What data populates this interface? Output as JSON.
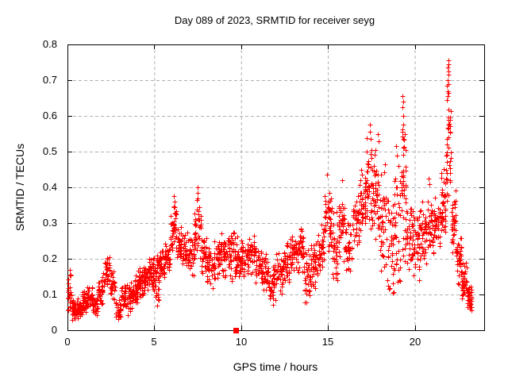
{
  "chart_data": {
    "type": "scatter",
    "title": "Day 089 of 2023, SRMTID for receiver seyg",
    "xlabel": "GPS time / hours",
    "ylabel": "SRMTID / TECUs",
    "xlim": [
      0,
      24
    ],
    "ylim": [
      0,
      0.8
    ],
    "xtick_values": [
      0,
      5,
      10,
      15,
      20
    ],
    "xtick_labels": [
      "0",
      "5",
      "10",
      "15",
      "20"
    ],
    "ytick_values": [
      0,
      0.1,
      0.2,
      0.3,
      0.4,
      0.5,
      0.6,
      0.7,
      0.8
    ],
    "ytick_labels": [
      "0",
      "0.1",
      "0.2",
      "0.3",
      "0.4",
      "0.5",
      "0.6",
      "0.7",
      "0.8"
    ],
    "grid": true,
    "legend": "none",
    "marker": "plus",
    "series_bins": [
      [
        0.0,
        0.2,
        0.03,
        0.19,
        22
      ],
      [
        0.2,
        0.5,
        0.02,
        0.1,
        40
      ],
      [
        0.5,
        0.8,
        0.03,
        0.09,
        38
      ],
      [
        0.8,
        1.1,
        0.04,
        0.11,
        36
      ],
      [
        1.1,
        1.45,
        0.05,
        0.13,
        32
      ],
      [
        1.45,
        1.75,
        0.04,
        0.1,
        30
      ],
      [
        1.75,
        2.05,
        0.06,
        0.16,
        30
      ],
      [
        2.05,
        2.45,
        0.12,
        0.21,
        36
      ],
      [
        2.45,
        2.75,
        0.07,
        0.17,
        30
      ],
      [
        2.75,
        3.1,
        0.02,
        0.09,
        30
      ],
      [
        3.1,
        3.45,
        0.05,
        0.13,
        32
      ],
      [
        3.45,
        3.75,
        0.03,
        0.15,
        32
      ],
      [
        3.75,
        4.05,
        0.06,
        0.16,
        36
      ],
      [
        4.05,
        4.35,
        0.09,
        0.18,
        38
      ],
      [
        4.35,
        4.65,
        0.1,
        0.19,
        38
      ],
      [
        4.65,
        5.0,
        0.11,
        0.21,
        40
      ],
      [
        5.0,
        5.3,
        0.06,
        0.22,
        36
      ],
      [
        5.3,
        5.6,
        0.14,
        0.24,
        36
      ],
      [
        5.6,
        5.9,
        0.16,
        0.26,
        36
      ],
      [
        5.9,
        6.3,
        0.2,
        0.37,
        40
      ],
      [
        6.3,
        6.6,
        0.18,
        0.3,
        34
      ],
      [
        6.6,
        7.0,
        0.16,
        0.28,
        34
      ],
      [
        7.0,
        7.3,
        0.15,
        0.27,
        32
      ],
      [
        7.3,
        7.7,
        0.17,
        0.39,
        36
      ],
      [
        7.7,
        8.0,
        0.14,
        0.28,
        32
      ],
      [
        8.0,
        8.4,
        0.1,
        0.24,
        36
      ],
      [
        8.4,
        8.8,
        0.12,
        0.26,
        36
      ],
      [
        8.8,
        9.2,
        0.14,
        0.28,
        36
      ],
      [
        9.2,
        9.6,
        0.13,
        0.3,
        36
      ],
      [
        9.6,
        10.0,
        0.13,
        0.27,
        36
      ],
      [
        10.0,
        10.4,
        0.13,
        0.26,
        36
      ],
      [
        10.4,
        10.8,
        0.14,
        0.3,
        36
      ],
      [
        10.8,
        11.2,
        0.12,
        0.24,
        36
      ],
      [
        11.2,
        11.6,
        0.1,
        0.22,
        36
      ],
      [
        11.6,
        12.0,
        0.06,
        0.2,
        36
      ],
      [
        12.0,
        12.4,
        0.1,
        0.23,
        36
      ],
      [
        12.4,
        12.8,
        0.13,
        0.26,
        36
      ],
      [
        12.8,
        13.2,
        0.15,
        0.28,
        36
      ],
      [
        13.2,
        13.6,
        0.15,
        0.3,
        36
      ],
      [
        13.6,
        14.0,
        0.05,
        0.25,
        34
      ],
      [
        14.0,
        14.4,
        0.1,
        0.26,
        36
      ],
      [
        14.4,
        14.8,
        0.15,
        0.3,
        36
      ],
      [
        14.8,
        15.2,
        0.2,
        0.42,
        40
      ],
      [
        15.2,
        15.6,
        0.11,
        0.36,
        36
      ],
      [
        15.6,
        16.0,
        0.18,
        0.41,
        36
      ],
      [
        16.0,
        16.4,
        0.15,
        0.32,
        36
      ],
      [
        16.4,
        16.8,
        0.22,
        0.38,
        36
      ],
      [
        16.8,
        17.2,
        0.24,
        0.44,
        38
      ],
      [
        17.2,
        17.6,
        0.25,
        0.56,
        40
      ],
      [
        17.6,
        18.0,
        0.22,
        0.54,
        38
      ],
      [
        18.0,
        18.4,
        0.13,
        0.46,
        36
      ],
      [
        18.4,
        18.8,
        0.07,
        0.4,
        36
      ],
      [
        18.8,
        19.2,
        0.1,
        0.5,
        36
      ],
      [
        19.2,
        19.5,
        0.15,
        0.63,
        40
      ],
      [
        19.5,
        19.9,
        0.15,
        0.4,
        36
      ],
      [
        19.9,
        20.3,
        0.12,
        0.35,
        36
      ],
      [
        20.3,
        20.7,
        0.17,
        0.37,
        36
      ],
      [
        20.7,
        21.1,
        0.2,
        0.38,
        36
      ],
      [
        21.1,
        21.5,
        0.22,
        0.38,
        36
      ],
      [
        21.5,
        21.8,
        0.25,
        0.46,
        36
      ],
      [
        21.8,
        22.1,
        0.28,
        0.72,
        40
      ],
      [
        22.1,
        22.4,
        0.2,
        0.4,
        36
      ],
      [
        22.4,
        22.7,
        0.12,
        0.28,
        36
      ],
      [
        22.7,
        23.0,
        0.08,
        0.2,
        36
      ],
      [
        23.0,
        23.3,
        0.05,
        0.13,
        42
      ]
    ],
    "outlier_points": [
      [
        21.92,
        0.755
      ],
      [
        21.94,
        0.745
      ],
      [
        21.9,
        0.735
      ],
      [
        21.93,
        0.725
      ],
      [
        21.95,
        0.715
      ],
      [
        21.91,
        0.7
      ],
      [
        21.93,
        0.69
      ],
      [
        21.9,
        0.655
      ],
      [
        21.96,
        0.59
      ],
      [
        21.94,
        0.565
      ],
      [
        19.3,
        0.655
      ],
      [
        19.33,
        0.64
      ],
      [
        19.28,
        0.625
      ],
      [
        19.32,
        0.6
      ],
      [
        19.35,
        0.575
      ],
      [
        19.3,
        0.555
      ],
      [
        17.4,
        0.575
      ],
      [
        17.43,
        0.555
      ],
      [
        17.46,
        0.535
      ],
      [
        17.88,
        0.55
      ],
      [
        17.91,
        0.53
      ],
      [
        18.92,
        0.515
      ],
      [
        18.3,
        0.465
      ],
      [
        16.92,
        0.45
      ],
      [
        16.95,
        0.435
      ],
      [
        14.93,
        0.435
      ],
      [
        15.82,
        0.42
      ],
      [
        20.82,
        0.425
      ],
      [
        20.85,
        0.41
      ],
      [
        7.5,
        0.4
      ],
      [
        7.48,
        0.385
      ],
      [
        7.52,
        0.37
      ],
      [
        6.13,
        0.375
      ],
      [
        6.16,
        0.36
      ]
    ],
    "square_points": [
      [
        9.67,
        0.0
      ]
    ]
  },
  "colors": {
    "marker": "#ff0000",
    "grid": "#b0b0b0",
    "axis": "#000000",
    "background": "#ffffff"
  }
}
